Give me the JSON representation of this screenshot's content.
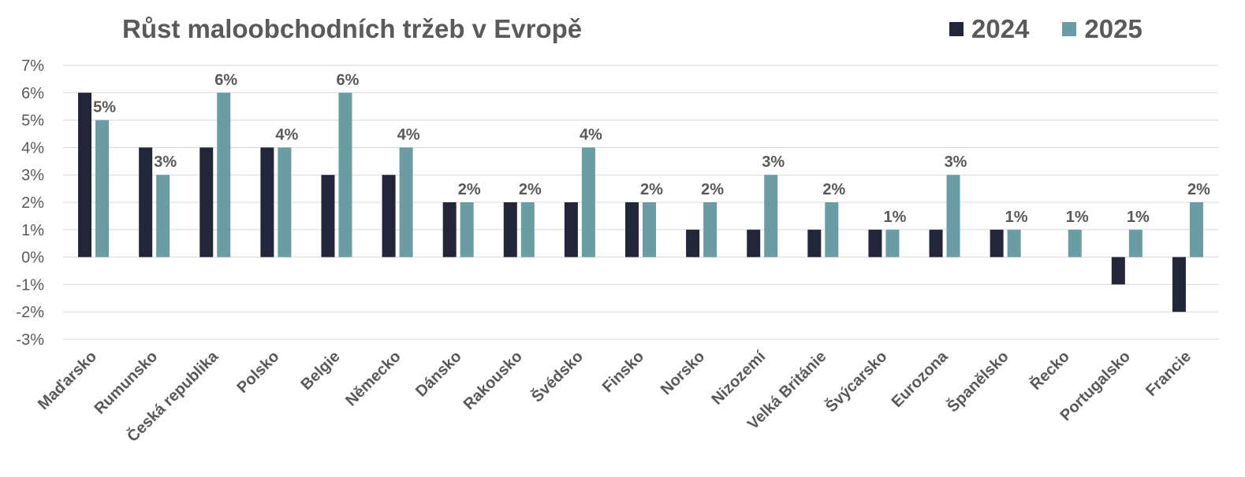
{
  "chart_data": {
    "type": "bar",
    "title": "Růst maloobchodních tržeb v Evropě",
    "categories": [
      "Maďarsko",
      "Rumunsko",
      "Česká republika",
      "Polsko",
      "Belgie",
      "Německo",
      "Dánsko",
      "Rakousko",
      "Švédsko",
      "Finsko",
      "Norsko",
      "Nizozemí",
      "Velká Británie",
      "Švýcarsko",
      "Eurozona",
      "Španělsko",
      "Řecko",
      "Portugalsko",
      "Francie"
    ],
    "series": [
      {
        "name": "2024",
        "color": "#232638",
        "values": [
          6,
          4,
          4,
          4,
          3,
          3,
          2,
          2,
          2,
          2,
          1,
          1,
          1,
          1,
          1,
          1,
          0,
          -1,
          -2
        ]
      },
      {
        "name": "2025",
        "color": "#6a9ca4",
        "values": [
          5,
          3,
          6,
          4,
          6,
          4,
          2,
          2,
          4,
          2,
          2,
          3,
          2,
          1,
          3,
          1,
          1,
          1,
          2
        ]
      }
    ],
    "data_labels": [
      "5%",
      "3%",
      "6%",
      "4%",
      "6%",
      "4%",
      "2%",
      "2%",
      "4%",
      "2%",
      "2%",
      "3%",
      "2%",
      "1%",
      "3%",
      "1%",
      "1%",
      "1%",
      "2%"
    ],
    "yticks": [
      "7%",
      "6%",
      "5%",
      "4%",
      "3%",
      "2%",
      "1%",
      "0%",
      "-1%",
      "-2%",
      "-3%"
    ],
    "ylim": [
      -3,
      7
    ],
    "grid": true,
    "legend_position": "top-right",
    "xlabel": "",
    "ylabel": ""
  }
}
